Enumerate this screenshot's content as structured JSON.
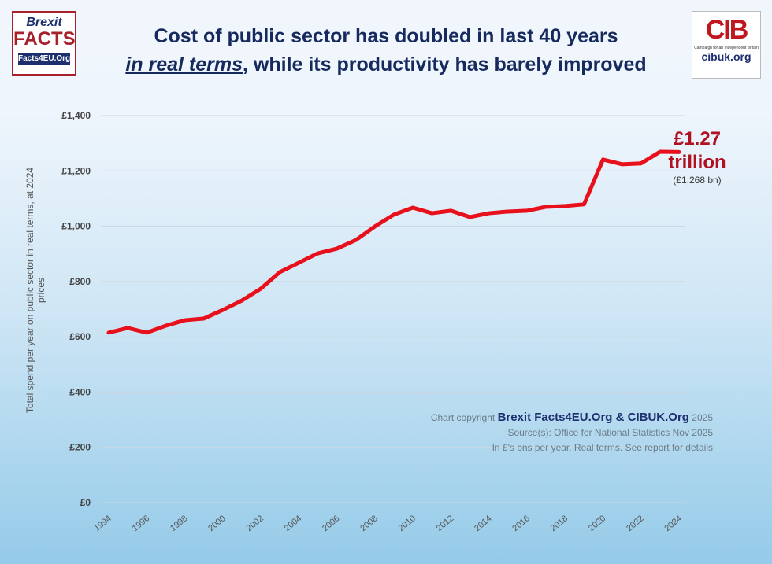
{
  "header": {
    "title_line1": "Cost of public sector has doubled in last 40 years",
    "title_line2_emph": "in real terms",
    "title_line2_rest": ", while its productivity has barely improved",
    "logo_left": {
      "top": "Brexit",
      "middle": "FACTS",
      "bottom": "Facts4EU.Org"
    },
    "logo_right": {
      "mark": "CIB",
      "caption": "Campaign for an Independent Britain",
      "url": "cibuk.org"
    }
  },
  "annotation": {
    "value": "£1.27",
    "unit": "trillion",
    "detail": "(£1,268 bn)"
  },
  "credits": {
    "prefix": "Chart copyright",
    "owners": "Brexit Facts4EU.Org & CIBUK.Org",
    "year": "2025",
    "source": "Source(s): Office for National Statistics Nov 2025",
    "note": "In £'s bns per year. Real terms. See report for details"
  },
  "chart_data": {
    "type": "line",
    "ylabel": "Total spend per year on public sector in real terms, at 2024 prices",
    "xlabel": "",
    "ylim": [
      0,
      1400
    ],
    "yticks": [
      "£0",
      "£200",
      "£400",
      "£600",
      "£800",
      "£1,000",
      "£1,200",
      "£1,400"
    ],
    "xticks": [
      "1994",
      "1996",
      "1998",
      "2000",
      "2002",
      "2004",
      "2006",
      "2008",
      "2010",
      "2012",
      "2014",
      "2016",
      "2018",
      "2020",
      "2022",
      "2024"
    ],
    "grid": true,
    "color": "#e8101a",
    "x": [
      1994,
      1995,
      1996,
      1997,
      1998,
      1999,
      2000,
      2001,
      2002,
      2003,
      2004,
      2005,
      2006,
      2007,
      2008,
      2009,
      2010,
      2011,
      2012,
      2013,
      2014,
      2015,
      2016,
      2017,
      2018,
      2019,
      2020,
      2021,
      2022,
      2023,
      2024
    ],
    "values": [
      615,
      632,
      615,
      640,
      660,
      666,
      697,
      731,
      774,
      834,
      868,
      902,
      919,
      950,
      999,
      1042,
      1067,
      1047,
      1056,
      1033,
      1047,
      1053,
      1056,
      1070,
      1073,
      1079,
      1241,
      1224,
      1227,
      1269,
      1268
    ]
  }
}
